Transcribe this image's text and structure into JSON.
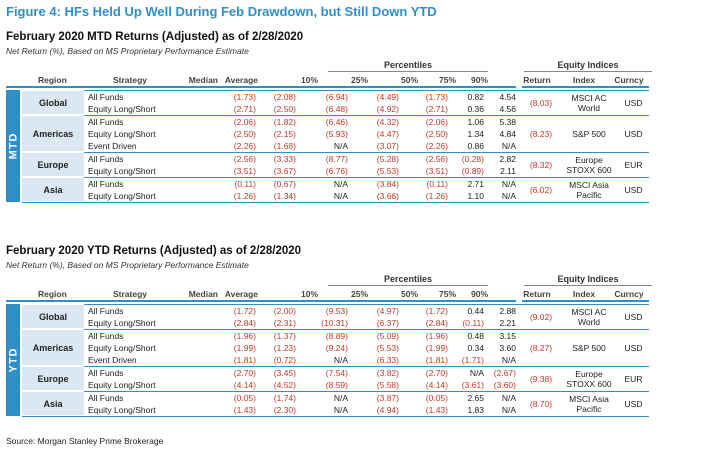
{
  "figure_title": "Figure 4: HFs Held Up Well During Feb Drawdown, but Still Down YTD",
  "headers": {
    "percentiles": "Percentiles",
    "equity_indices": "Equity Indices",
    "region": "Region",
    "strategy": "Strategy",
    "median": "Median",
    "average": "Average",
    "p10": "10%",
    "p25": "25%",
    "p50": "50%",
    "p75": "75%",
    "p90": "90%",
    "ret": "Return",
    "index": "Index",
    "curr": "Curncy"
  },
  "sections": [
    {
      "id": "mtd",
      "tab": "MTD",
      "title": "February 2020 MTD Returns (Adjusted) as of 2/28/2020",
      "subtitle": "Net Return (%), Based on MS Proprietary Performance Estimate",
      "groups": [
        {
          "region": "Global",
          "index": {
            "ret": "(8.03)",
            "name": "MSCI AC World",
            "curr": "USD"
          },
          "rows": [
            {
              "strategy": "All Funds",
              "median": "(1.73)",
              "average": "(2.08)",
              "p10": "(6.94)",
              "p25": "(4.49)",
              "p50": "(1.73)",
              "p75": "0.82",
              "p90": "4.54"
            },
            {
              "strategy": "Equity Long/Short",
              "median": "(2.71)",
              "average": "(2.50)",
              "p10": "(6.48)",
              "p25": "(4.92)",
              "p50": "(2.71)",
              "p75": "0.36",
              "p90": "4.56"
            }
          ]
        },
        {
          "region": "Americas",
          "index": {
            "ret": "(8.23)",
            "name": "S&P 500",
            "curr": "USD"
          },
          "rows": [
            {
              "strategy": "All Funds",
              "median": "(2.06)",
              "average": "(1.82)",
              "p10": "(6.46)",
              "p25": "(4.32)",
              "p50": "(2.06)",
              "p75": "1.06",
              "p90": "5.38"
            },
            {
              "strategy": "Equity Long/Short",
              "median": "(2.50)",
              "average": "(2.15)",
              "p10": "(5.93)",
              "p25": "(4.47)",
              "p50": "(2.50)",
              "p75": "1.34",
              "p90": "4.84"
            },
            {
              "strategy": "Event Driven",
              "median": "(2.26)",
              "average": "(1.68)",
              "p10": "N/A",
              "p25": "(3.07)",
              "p50": "(2.26)",
              "p75": "0.86",
              "p90": "N/A"
            }
          ]
        },
        {
          "region": "Europe",
          "index": {
            "ret": "(8.32)",
            "name": "Europe STOXX 600",
            "curr": "EUR"
          },
          "rows": [
            {
              "strategy": "All Funds",
              "median": "(2.56)",
              "average": "(3.33)",
              "p10": "(8.77)",
              "p25": "(5.28)",
              "p50": "(2.56)",
              "p75": "(0.28)",
              "p90": "2.82"
            },
            {
              "strategy": "Equity Long/Short",
              "median": "(3.51)",
              "average": "(3.67)",
              "p10": "(6.76)",
              "p25": "(5.53)",
              "p50": "(3.51)",
              "p75": "(0.89)",
              "p90": "2.11"
            }
          ]
        },
        {
          "region": "Asia",
          "index": {
            "ret": "(6.02)",
            "name": "MSCI Asia Pacific",
            "curr": "USD"
          },
          "rows": [
            {
              "strategy": "All Funds",
              "median": "(0.11)",
              "average": "(0.67)",
              "p10": "N/A",
              "p25": "(3.84)",
              "p50": "(0.11)",
              "p75": "2.71",
              "p90": "N/A"
            },
            {
              "strategy": "Equity Long/Short",
              "median": "(1.26)",
              "average": "(1.34)",
              "p10": "N/A",
              "p25": "(3.66)",
              "p50": "(1.26)",
              "p75": "1.10",
              "p90": "N/A"
            }
          ]
        }
      ]
    },
    {
      "id": "ytd",
      "tab": "YTD",
      "title": "February 2020 YTD Returns (Adjusted) as of 2/28/2020",
      "subtitle": "Net Return (%), Based on MS Proprietary Performance Estimate",
      "groups": [
        {
          "region": "Global",
          "index": {
            "ret": "(9.02)",
            "name": "MSCI AC World",
            "curr": "USD"
          },
          "rows": [
            {
              "strategy": "All Funds",
              "median": "(1.72)",
              "average": "(2.00)",
              "p10": "(9.53)",
              "p25": "(4.97)",
              "p50": "(1.72)",
              "p75": "0.44",
              "p90": "2.88"
            },
            {
              "strategy": "Equity Long/Short",
              "median": "(2.84)",
              "average": "(2.31)",
              "p10": "(10.31)",
              "p25": "(6.37)",
              "p50": "(2.84)",
              "p75": "(0.11)",
              "p90": "2.21"
            }
          ]
        },
        {
          "region": "Americas",
          "index": {
            "ret": "(8.27)",
            "name": "S&P 500",
            "curr": "USD"
          },
          "rows": [
            {
              "strategy": "All Funds",
              "median": "(1.96)",
              "average": "(1.37)",
              "p10": "(8.89)",
              "p25": "(5.09)",
              "p50": "(1.96)",
              "p75": "0.48",
              "p90": "3.15"
            },
            {
              "strategy": "Equity Long/Short",
              "median": "(1.99)",
              "average": "(1.23)",
              "p10": "(9.24)",
              "p25": "(5.53)",
              "p50": "(1.99)",
              "p75": "0.34",
              "p90": "3.60"
            },
            {
              "strategy": "Event Driven",
              "median": "(1.81)",
              "average": "(0.72)",
              "p10": "N/A",
              "p25": "(6.33)",
              "p50": "(1.81)",
              "p75": "(1.71)",
              "p90": "N/A"
            }
          ]
        },
        {
          "region": "Europe",
          "index": {
            "ret": "(9.38)",
            "name": "Europe STOXX 600",
            "curr": "EUR"
          },
          "rows": [
            {
              "strategy": "All Funds",
              "median": "(2.70)",
              "average": "(3.45)",
              "p10": "(7.54)",
              "p25": "(3.82)",
              "p50": "(2.70)",
              "p75": "N/A",
              "p90": "(2.67)"
            },
            {
              "strategy": "Equity Long/Short",
              "median": "(4.14)",
              "average": "(4.52)",
              "p10": "(8.59)",
              "p25": "(5.58)",
              "p50": "(4.14)",
              "p75": "(3.61)",
              "p90": "(3.60)"
            }
          ]
        },
        {
          "region": "Asia",
          "index": {
            "ret": "(8.70)",
            "name": "MSCI Asia Pacific",
            "curr": "USD"
          },
          "rows": [
            {
              "strategy": "All Funds",
              "median": "(0.05)",
              "average": "(1.74)",
              "p10": "N/A",
              "p25": "(3.87)",
              "p50": "(0.05)",
              "p75": "2.65",
              "p90": "N/A"
            },
            {
              "strategy": "Equity Long/Short",
              "median": "(1.43)",
              "average": "(2.30)",
              "p10": "N/A",
              "p25": "(4.94)",
              "p50": "(1.43)",
              "p75": "1.83",
              "p90": "N/A"
            }
          ]
        }
      ]
    }
  ],
  "source": "Source: Morgan Stanley Prime Brokerage",
  "colors": {
    "accent": "#2e8fc9",
    "negative": "#c0392b",
    "region_fill": "#dbe8f4"
  }
}
